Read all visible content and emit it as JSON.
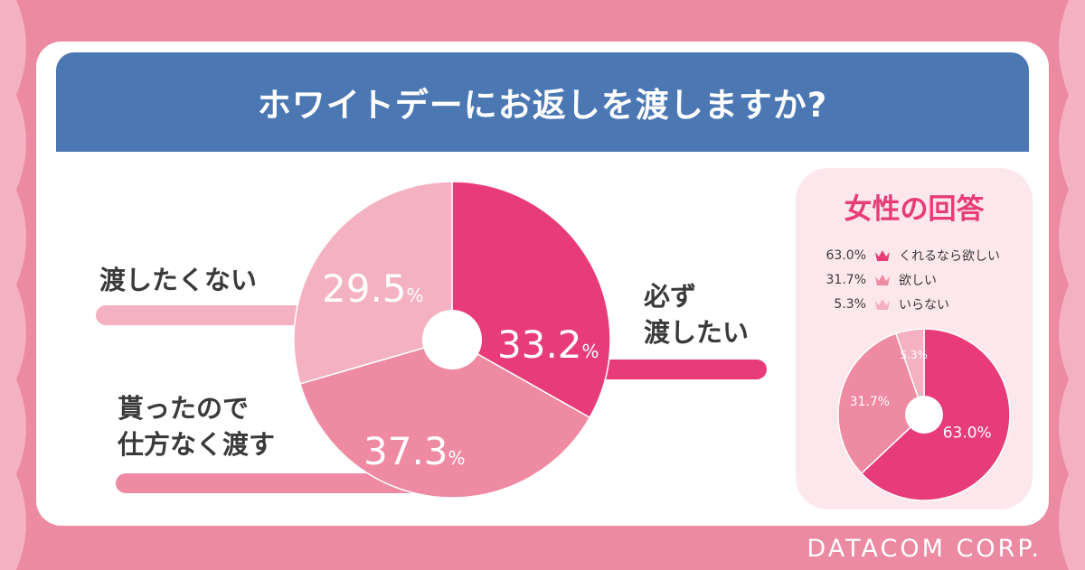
{
  "title": "ホワイトデーにお返しを渡しますか?",
  "footer": "DATACOM CORP.",
  "colors": {
    "background": "#ec8aa2",
    "title_bar": "#4b77b3",
    "accent": "#e73c79",
    "slice_1": "#e73c79",
    "slice_2": "#ee8aa2",
    "slice_3": "#f4b1c2",
    "panel": "#fce7ec"
  },
  "chart_data": [
    {
      "type": "pie",
      "title": "ホワイトデーにお返しを渡しますか?",
      "slices": [
        {
          "label_line1": "必ず",
          "label_line2": "渡したい",
          "value": 33.2,
          "value_text": "33.2"
        },
        {
          "label_line1": "貰ったので",
          "label_line2": "仕方なく渡す",
          "value": 37.3,
          "value_text": "37.3"
        },
        {
          "label_line1": "渡したくない",
          "label_line2": "",
          "value": 29.5,
          "value_text": "29.5"
        }
      ],
      "unit": "%"
    },
    {
      "type": "pie",
      "title": "女性の回答",
      "slices": [
        {
          "label": "くれるなら欲しい",
          "value": 63.0,
          "value_text": "63.0%",
          "legend_value": "63.0%"
        },
        {
          "label": "欲しい",
          "value": 31.7,
          "value_text": "31.7%",
          "legend_value": "31.7%"
        },
        {
          "label": "いらない",
          "value": 5.3,
          "value_text": "5.3%",
          "legend_value": "5.3%"
        }
      ]
    }
  ]
}
